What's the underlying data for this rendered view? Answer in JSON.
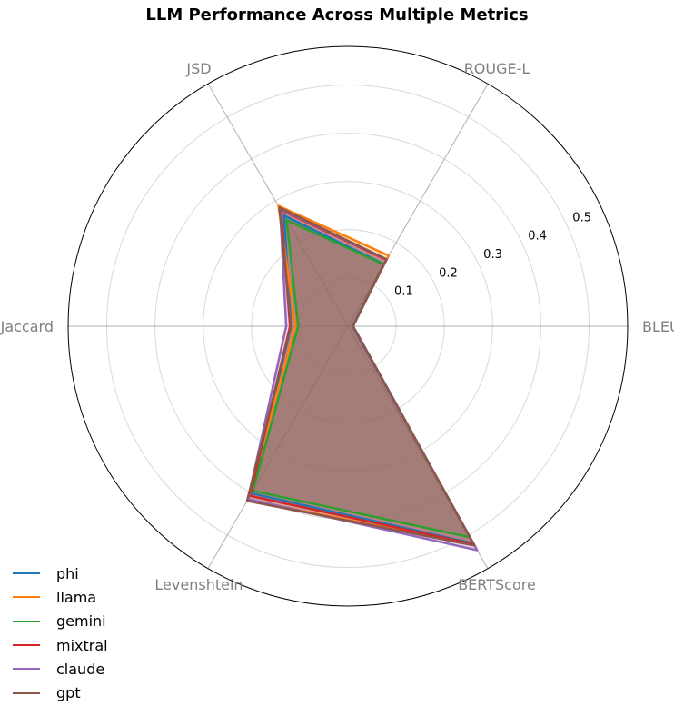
{
  "chart_data": {
    "type": "radar",
    "title": "LLM Performance Across Multiple Metrics",
    "axes": [
      "BLEU",
      "ROUGE-L",
      "JSD",
      "Jaccard",
      "Levenshtein",
      "BERTScore"
    ],
    "r_ticks": [
      "0.1",
      "0.2",
      "0.3",
      "0.4",
      "0.5"
    ],
    "r_max": 0.58,
    "grid": true,
    "legend_position": "bottom-left",
    "series": [
      {
        "name": "phi",
        "color": "#1f77b4",
        "values": [
          0.011,
          0.149,
          0.265,
          0.118,
          0.4,
          0.52
        ]
      },
      {
        "name": "llama",
        "color": "#ff7f0e",
        "values": [
          0.01,
          0.169,
          0.288,
          0.109,
          0.415,
          0.525
        ]
      },
      {
        "name": "gemini",
        "color": "#2ca02c",
        "values": [
          0.009,
          0.148,
          0.254,
          0.103,
          0.394,
          0.505
        ]
      },
      {
        "name": "mixtral",
        "color": "#d62728",
        "values": [
          0.01,
          0.159,
          0.278,
          0.12,
          0.406,
          0.522
        ]
      },
      {
        "name": "claude",
        "color": "#9467bd",
        "values": [
          0.009,
          0.16,
          0.281,
          0.128,
          0.414,
          0.536
        ]
      },
      {
        "name": "gpt",
        "color": "#8c564b",
        "values": [
          0.01,
          0.16,
          0.284,
          0.118,
          0.418,
          0.525
        ]
      }
    ]
  }
}
